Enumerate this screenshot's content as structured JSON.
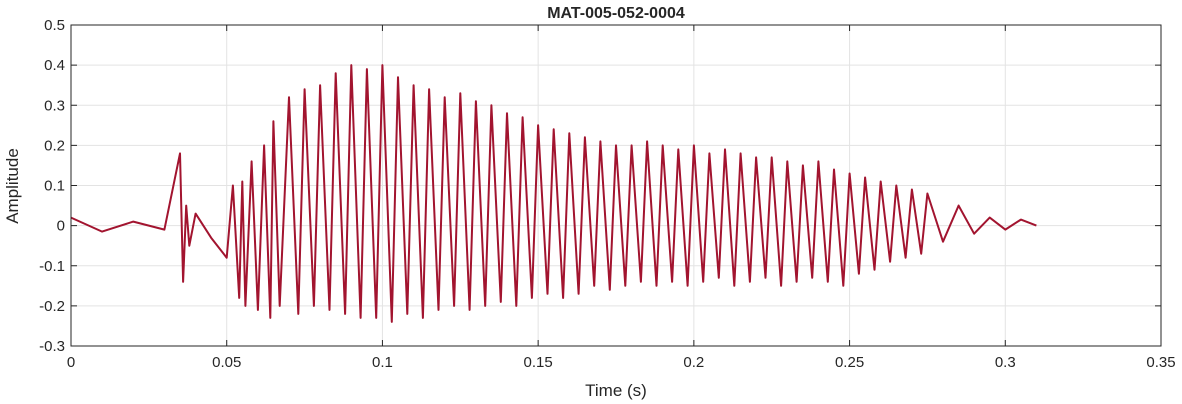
{
  "chart_data": {
    "type": "line",
    "title": "MAT-005-052-0004",
    "xlabel": "Time (s)",
    "ylabel": "Amplitude",
    "xlim": [
      0,
      0.35
    ],
    "ylim": [
      -0.3,
      0.5
    ],
    "xticks": [
      "0",
      "0.05",
      "0.1",
      "0.15",
      "0.2",
      "0.25",
      "0.3",
      "0.35"
    ],
    "yticks": [
      "-0.3",
      "-0.2",
      "-0.1",
      "0",
      "0.1",
      "0.2",
      "0.3",
      "0.4",
      "0.5"
    ],
    "grid": true,
    "line_color": "#a2142f",
    "series": [
      {
        "x": [
          0.0,
          0.01,
          0.02,
          0.03,
          0.035,
          0.036,
          0.037,
          0.038,
          0.04,
          0.045,
          0.05,
          0.052,
          0.054,
          0.055,
          0.056,
          0.058,
          0.06,
          0.062,
          0.064,
          0.065,
          0.067,
          0.07,
          0.073,
          0.075,
          0.078,
          0.08,
          0.083,
          0.085,
          0.088,
          0.09,
          0.093,
          0.095,
          0.098,
          0.1,
          0.103,
          0.105,
          0.108,
          0.11,
          0.113,
          0.115,
          0.118,
          0.12,
          0.123,
          0.125,
          0.128,
          0.13,
          0.133,
          0.135,
          0.138,
          0.14,
          0.143,
          0.145,
          0.148,
          0.15,
          0.153,
          0.155,
          0.158,
          0.16,
          0.163,
          0.165,
          0.168,
          0.17,
          0.173,
          0.175,
          0.178,
          0.18,
          0.183,
          0.185,
          0.188,
          0.19,
          0.193,
          0.195,
          0.198,
          0.2,
          0.203,
          0.205,
          0.208,
          0.21,
          0.213,
          0.215,
          0.218,
          0.22,
          0.223,
          0.225,
          0.228,
          0.23,
          0.233,
          0.235,
          0.238,
          0.24,
          0.243,
          0.245,
          0.248,
          0.25,
          0.253,
          0.255,
          0.258,
          0.26,
          0.263,
          0.265,
          0.268,
          0.27,
          0.273,
          0.275,
          0.28,
          0.285,
          0.29,
          0.295,
          0.3,
          0.305,
          0.31
        ],
        "y": [
          0.02,
          -0.015,
          0.01,
          -0.01,
          0.18,
          -0.14,
          0.05,
          -0.05,
          0.03,
          -0.03,
          -0.08,
          0.1,
          -0.18,
          0.11,
          -0.2,
          0.16,
          -0.21,
          0.2,
          -0.23,
          0.26,
          -0.2,
          0.32,
          -0.22,
          0.34,
          -0.2,
          0.35,
          -0.21,
          0.38,
          -0.22,
          0.4,
          -0.23,
          0.39,
          -0.23,
          0.4,
          -0.24,
          0.37,
          -0.22,
          0.35,
          -0.23,
          0.34,
          -0.21,
          0.32,
          -0.2,
          0.33,
          -0.21,
          0.31,
          -0.2,
          0.3,
          -0.19,
          0.28,
          -0.2,
          0.27,
          -0.18,
          0.25,
          -0.17,
          0.24,
          -0.18,
          0.23,
          -0.17,
          0.22,
          -0.15,
          0.21,
          -0.16,
          0.2,
          -0.15,
          0.2,
          -0.14,
          0.21,
          -0.15,
          0.2,
          -0.14,
          0.19,
          -0.15,
          0.2,
          -0.14,
          0.18,
          -0.13,
          0.19,
          -0.15,
          0.18,
          -0.14,
          0.17,
          -0.13,
          0.17,
          -0.15,
          0.16,
          -0.14,
          0.15,
          -0.13,
          0.16,
          -0.14,
          0.14,
          -0.15,
          0.13,
          -0.12,
          0.12,
          -0.11,
          0.11,
          -0.09,
          0.1,
          -0.08,
          0.09,
          -0.07,
          0.08,
          -0.04,
          0.05,
          -0.02,
          0.02,
          -0.01,
          0.015,
          0.0
        ]
      }
    ]
  }
}
